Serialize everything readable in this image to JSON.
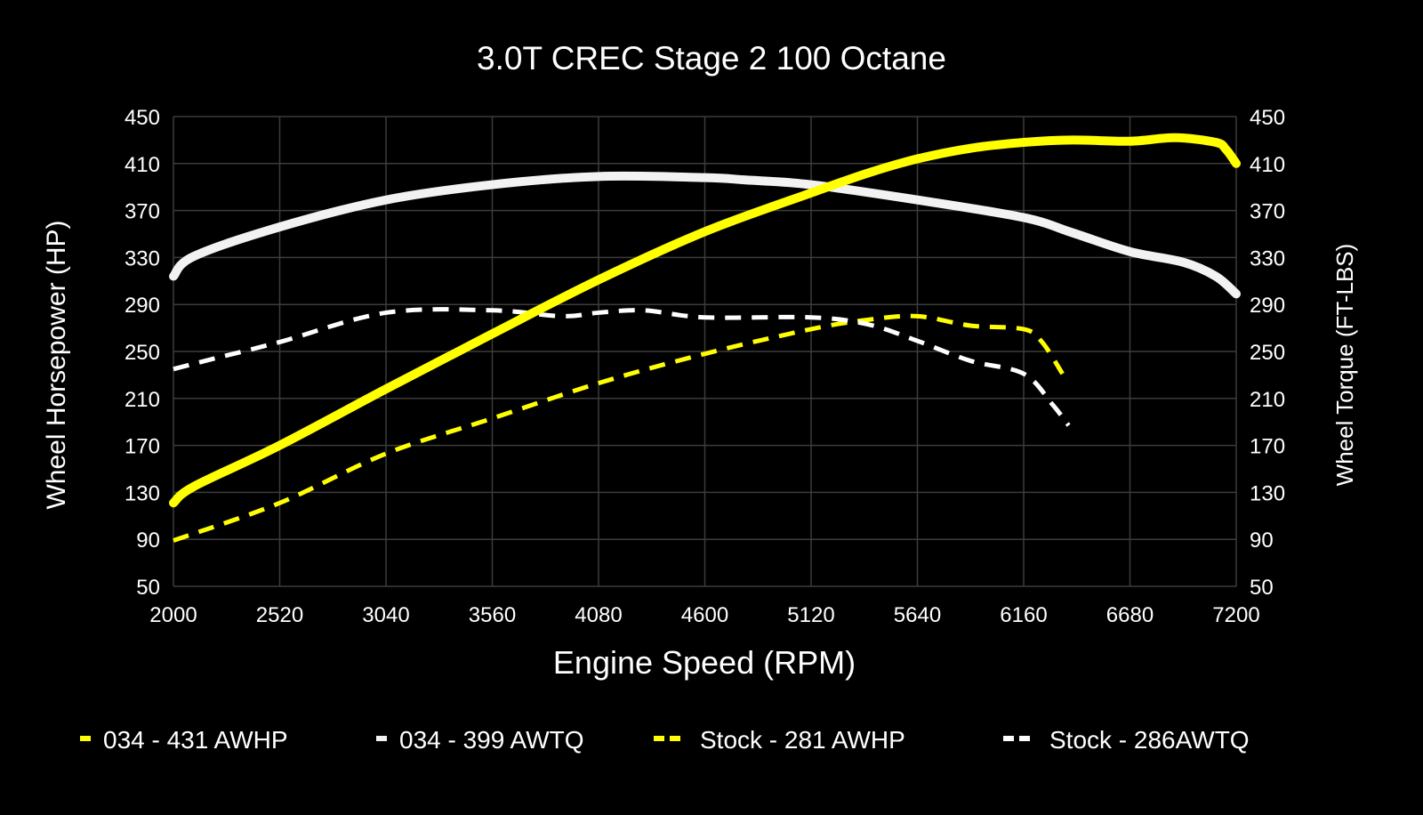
{
  "chart_data": {
    "type": "line",
    "title": "3.0T CREC Stage 2 100 Octane",
    "xlabel": "Engine Speed (RPM)",
    "ylabel_left": "Wheel Horsepower (HP)",
    "ylabel_right": "Wheel Torque (FT-LBS)",
    "xlim": [
      2000,
      7200
    ],
    "ylim": [
      50,
      450
    ],
    "x_ticks": [
      "2000",
      "2520",
      "3040",
      "3560",
      "4080",
      "4600",
      "5120",
      "5640",
      "6160",
      "6680",
      "7200"
    ],
    "y_ticks": [
      "50",
      "90",
      "130",
      "170",
      "210",
      "250",
      "290",
      "330",
      "370",
      "410",
      "450"
    ],
    "grid": true,
    "legend_position": "bottom",
    "background": "#000000",
    "series": [
      {
        "name": "034 - 431 AWHP",
        "color": "#ffff00",
        "style": "solid",
        "points": [
          [
            2000,
            121
          ],
          [
            2100,
            135
          ],
          [
            2520,
            170
          ],
          [
            3040,
            218
          ],
          [
            3560,
            265
          ],
          [
            4080,
            311
          ],
          [
            4600,
            352
          ],
          [
            5120,
            385
          ],
          [
            5400,
            402
          ],
          [
            5640,
            414
          ],
          [
            5900,
            423
          ],
          [
            6160,
            428
          ],
          [
            6400,
            430
          ],
          [
            6680,
            429
          ],
          [
            6900,
            432
          ],
          [
            7100,
            428
          ],
          [
            7150,
            422
          ],
          [
            7200,
            410
          ]
        ]
      },
      {
        "name": "034 - 399 AWTQ",
        "color": "#f2f2f2",
        "style": "solid",
        "points": [
          [
            2000,
            314
          ],
          [
            2100,
            331
          ],
          [
            2520,
            356
          ],
          [
            3040,
            379
          ],
          [
            3560,
            392
          ],
          [
            4080,
            399
          ],
          [
            4600,
            398
          ],
          [
            4800,
            396
          ],
          [
            5120,
            392
          ],
          [
            5640,
            379
          ],
          [
            6160,
            364
          ],
          [
            6400,
            351
          ],
          [
            6680,
            335
          ],
          [
            6940,
            326
          ],
          [
            7100,
            314
          ],
          [
            7200,
            299
          ]
        ]
      },
      {
        "name": "Stock - 281 AWHP",
        "color": "#ffff00",
        "style": "dashed",
        "points": [
          [
            2000,
            89
          ],
          [
            2520,
            121
          ],
          [
            3040,
            163
          ],
          [
            3560,
            193
          ],
          [
            4080,
            223
          ],
          [
            4600,
            248
          ],
          [
            5120,
            269
          ],
          [
            5400,
            277
          ],
          [
            5640,
            280
          ],
          [
            5900,
            272
          ],
          [
            6160,
            269
          ],
          [
            6250,
            258
          ],
          [
            6350,
            231
          ]
        ]
      },
      {
        "name": "Stock - 286AWTQ",
        "color": "#ffffff",
        "style": "dashed",
        "points": [
          [
            2000,
            235
          ],
          [
            2200,
            244
          ],
          [
            2520,
            258
          ],
          [
            3040,
            283
          ],
          [
            3560,
            285
          ],
          [
            3900,
            280
          ],
          [
            4080,
            283
          ],
          [
            4300,
            285
          ],
          [
            4600,
            279
          ],
          [
            5120,
            279
          ],
          [
            5400,
            273
          ],
          [
            5640,
            259
          ],
          [
            5900,
            242
          ],
          [
            6160,
            231
          ],
          [
            6300,
            205
          ],
          [
            6380,
            187
          ]
        ]
      }
    ]
  }
}
